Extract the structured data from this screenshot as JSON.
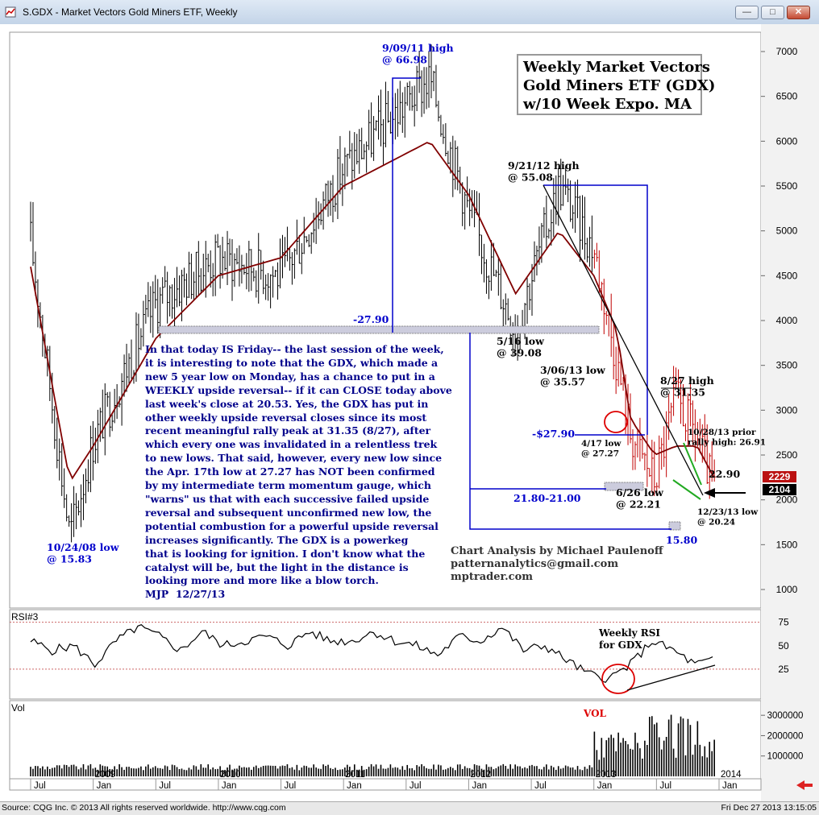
{
  "window": {
    "title": "S.GDX - Market Vectors Gold Miners ETF, Weekly"
  },
  "chart_title": [
    "Weekly Market Vectors",
    "Gold Miners ETF (GDX)",
    "w/10 Week Expo. MA"
  ],
  "colors": {
    "blue": "#0000cc",
    "ma": "#800000",
    "price": "#000000",
    "price_down": "#c00000",
    "red": "#dd0000",
    "green": "#22aa22"
  },
  "chart_data": [
    {
      "type": "line",
      "panel": "price",
      "scale_note": "price axis shows GDX price x100",
      "x": [
        "2008-07",
        "2008-10-24",
        "2009-01",
        "2009-07",
        "2010-01",
        "2010-07",
        "2011-01",
        "2011-09-09",
        "2012-01",
        "2012-05-16",
        "2012-09-21",
        "2013-01",
        "2013-03-06",
        "2013-04-17",
        "2013-06-26",
        "2013-08-27",
        "2013-10-28",
        "2013-12-23"
      ],
      "series": [
        {
          "values": [
            4900,
            1583,
            2650,
            4200,
            4700,
            4500,
            5700,
            6698,
            5200,
            3908,
            5508,
            4800,
            3557,
            2727,
            2221,
            3135,
            2691,
            2024
          ]
        }
      ],
      "ma_values": [
        4600,
        2200,
        2600,
        3800,
        4500,
        4700,
        5500,
        6000,
        5400,
        4300,
        5000,
        4500,
        3900,
        2900,
        2500,
        2600,
        2600,
        2200
      ],
      "y_ticks": [
        "7000",
        "6500",
        "6000",
        "5500",
        "5000",
        "4500",
        "4000",
        "3500",
        "3000",
        "2500",
        "2000",
        "1500",
        "1000"
      ],
      "ylim": [
        700,
        7500
      ],
      "last_value_labels": [
        "2229",
        "2104"
      ],
      "x_ticks": [
        "Jul",
        "Jan",
        "Jul",
        "Jan",
        "Jul",
        "Jan",
        "Jul",
        "Jan",
        "Jul",
        "Jan",
        "Jul",
        "Jan"
      ],
      "year_labels": [
        "2009",
        "2010",
        "2011",
        "2012",
        "2013",
        "2014"
      ],
      "annotations": [
        {
          "text": [
            "9/09/11 high",
            "@ 66.98"
          ],
          "color": "blue"
        },
        {
          "text": [
            "9/21/12 high",
            "@ 55.08"
          ],
          "color": "black"
        },
        {
          "text": [
            "5/16 low",
            "@ 39.08"
          ],
          "color": "black"
        },
        {
          "text": [
            "3/06/13 low",
            "@ 35.57"
          ],
          "color": "black"
        },
        {
          "text": [
            "8/27 high",
            "@ 31.35"
          ],
          "color": "black"
        },
        {
          "text": [
            "10/28/13 prior",
            "rally high: 26.91"
          ],
          "color": "black"
        },
        {
          "text": [
            "4/17 low",
            "@ 27.27"
          ],
          "color": "black"
        },
        {
          "text": [
            "6/26 low",
            "@ 22.21"
          ],
          "color": "black"
        },
        {
          "text": [
            "12/23/13 low",
            "@ 20.24"
          ],
          "color": "black"
        },
        {
          "text": [
            "22.90"
          ],
          "color": "black"
        },
        {
          "text": [
            "10/24/08 low",
            "@ 15.83"
          ],
          "color": "blue"
        },
        {
          "text": [
            "-27.90"
          ],
          "color": "blue"
        },
        {
          "text": [
            "-$27.90"
          ],
          "color": "blue"
        },
        {
          "text": [
            "21.80-21.00"
          ],
          "color": "blue"
        },
        {
          "text": [
            "15.80"
          ],
          "color": "blue"
        }
      ]
    },
    {
      "type": "line",
      "panel": "rsi",
      "label": "RSI#3",
      "values": [
        55,
        45,
        50,
        30,
        55,
        70,
        60,
        45,
        65,
        50,
        55,
        60,
        50,
        65,
        55,
        55,
        65,
        55,
        50,
        40,
        60,
        55,
        70,
        45,
        50,
        35,
        20,
        15,
        30,
        55,
        45,
        30,
        35
      ],
      "y_ticks": [
        "75",
        "50",
        "25"
      ],
      "ylim": [
        0,
        85
      ],
      "annotation": [
        "Weekly RSI",
        "for GDX"
      ]
    },
    {
      "type": "bar",
      "panel": "volume",
      "label": "Vol",
      "y_ticks": [
        "3000000",
        "2000000",
        "1000000"
      ],
      "ylim": [
        0,
        3600000
      ],
      "annotation": "VOL"
    }
  ],
  "commentary": [
    "In that today IS Friday-- the last session of the week,",
    "it is interesting to note that the GDX, which made a",
    "new 5 year low on Monday, has a chance to put in a",
    "WEEKLY upside reversal-- if it can CLOSE today above",
    "last week's close at 20.53. Yes, the GDX has put in",
    "other weekly upside reversal closes since its most",
    "recent meaningful rally peak at 31.35 (8/27), after",
    "which every one was invalidated in a relentless trek",
    "to new lows. That said, however, every new low since",
    "the Apr. 17th low at 27.27 has NOT been confirmed",
    "by my intermediate term momentum gauge, which",
    "\"warns\" us that with each successive failed upside",
    "reversal and subsequent unconfirmed new low, the",
    "potential combustion for a powerful upside reversal",
    "increases significantly. The GDX is a powerkeg",
    "that is looking for ignition. I don't know what the",
    "catalyst will be, but the light in the distance is",
    "looking more and more like a blow torch.",
    "MJP  12/27/13"
  ],
  "credit": [
    "Chart Analysis by Michael Paulenoff",
    "patternanalytics@gmail.com",
    "mptrader.com"
  ],
  "status": {
    "source": "Source: CQG Inc. © 2013 All rights reserved worldwide. http://www.cqg.com",
    "timestamp": "Fri Dec 27 2013 13:15:05"
  }
}
